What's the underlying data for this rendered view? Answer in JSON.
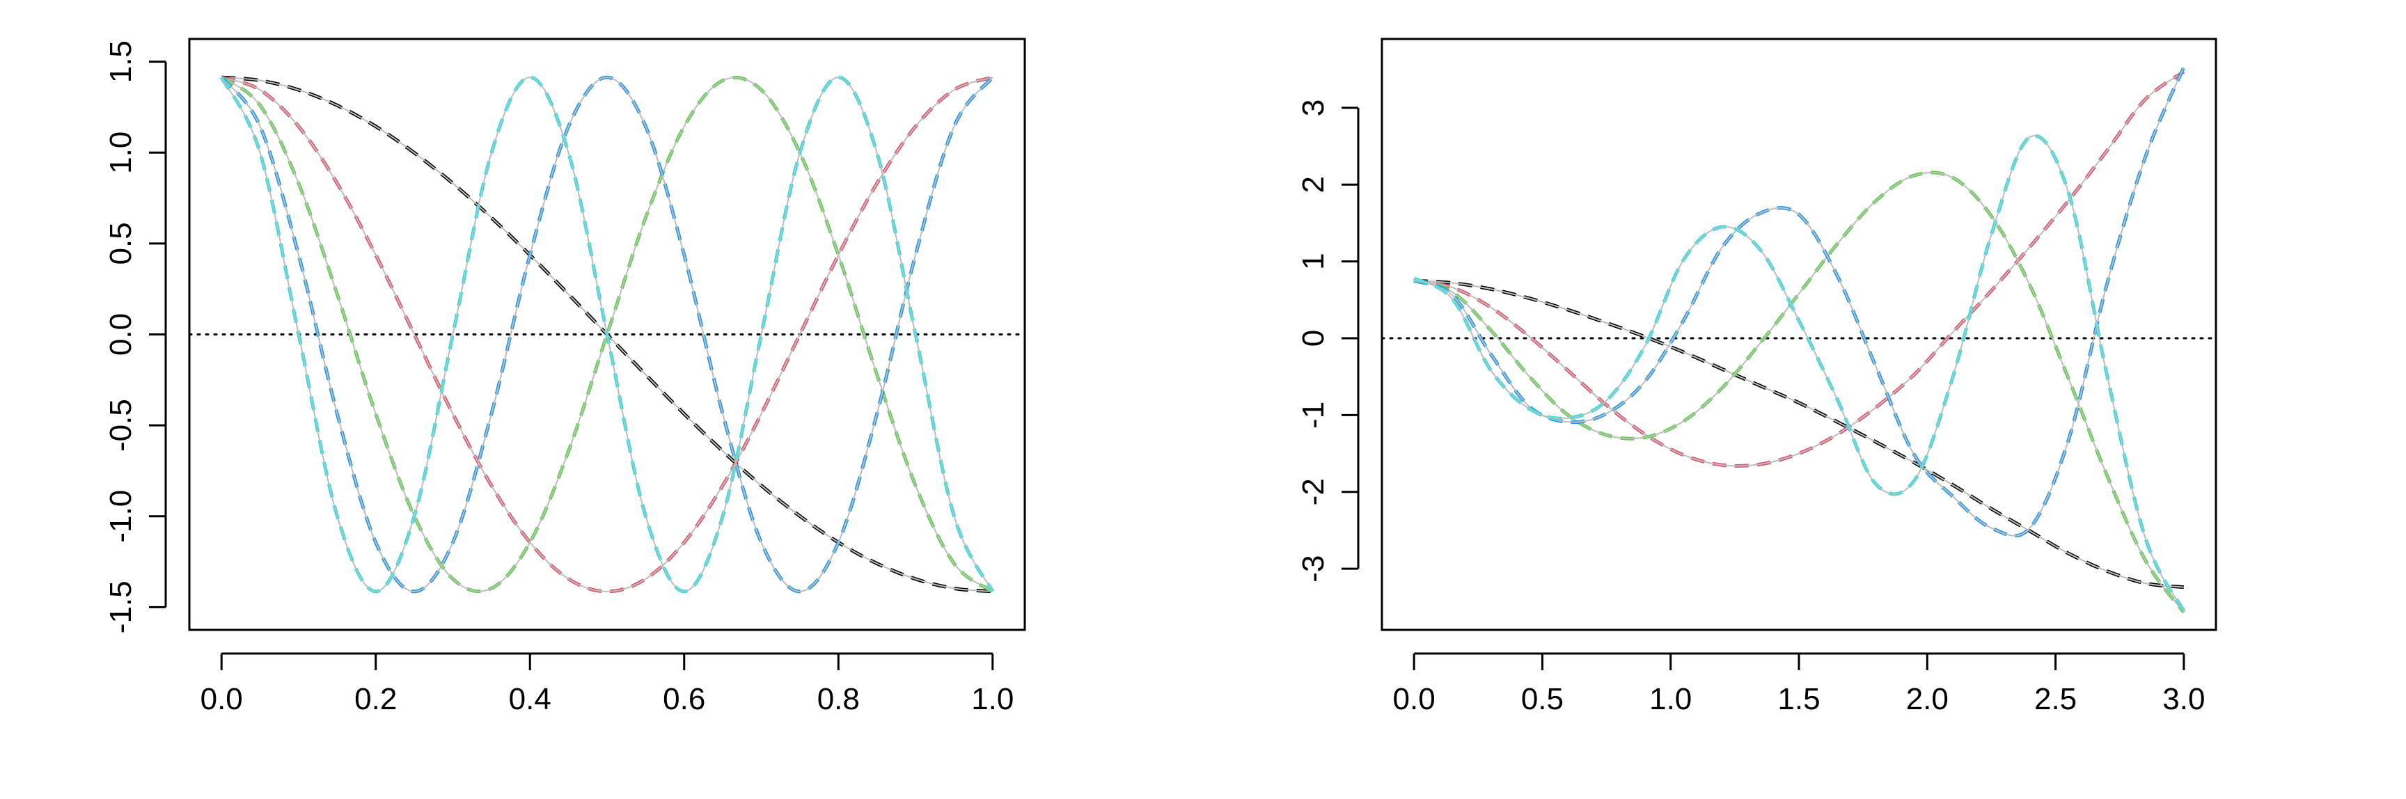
{
  "chart_data": [
    {
      "type": "line",
      "title": "",
      "xlabel": "",
      "ylabel": "",
      "xlim": [
        0,
        1
      ],
      "ylim": [
        -1.5,
        1.5
      ],
      "x_ticks": [
        "0.0",
        "0.2",
        "0.4",
        "0.6",
        "0.8",
        "1.0"
      ],
      "y_ticks": [
        "-1.5",
        "-1.0",
        "-0.5",
        "0.0",
        "0.5",
        "1.0",
        "1.5"
      ],
      "reference_line": {
        "y": 0,
        "style": "dotted"
      },
      "x": [
        0,
        0.05,
        0.1,
        0.15,
        0.2,
        0.25,
        0.3,
        0.35,
        0.4,
        0.45,
        0.5,
        0.55,
        0.6,
        0.65,
        0.7,
        0.75,
        0.8,
        0.85,
        0.9,
        0.95,
        1.0
      ],
      "series": [
        {
          "color": "#000000",
          "values": [
            1.414,
            1.397,
            1.345,
            1.26,
            1.144,
            0.999,
            0.831,
            0.642,
            0.437,
            0.221,
            0.0,
            -0.221,
            -0.437,
            -0.642,
            -0.831,
            -0.999,
            -1.144,
            -1.26,
            -1.345,
            -1.397,
            -1.414
          ]
        },
        {
          "color": "#DF536B",
          "values": [
            1.414,
            1.345,
            1.144,
            0.831,
            0.437,
            0.0,
            -0.437,
            -0.831,
            -1.144,
            -1.345,
            -1.414,
            -1.345,
            -1.144,
            -0.831,
            -0.437,
            0.0,
            0.437,
            0.831,
            1.144,
            1.345,
            1.414
          ]
        },
        {
          "color": "#61D04F",
          "values": [
            1.414,
            1.26,
            0.831,
            0.221,
            -0.437,
            -0.999,
            -1.345,
            -1.397,
            -1.144,
            -0.642,
            0.0,
            0.642,
            1.144,
            1.397,
            1.345,
            0.999,
            0.437,
            -0.221,
            -0.831,
            -1.26,
            -1.414
          ]
        },
        {
          "color": "#2297E6",
          "values": [
            1.414,
            1.144,
            0.437,
            -0.437,
            -1.144,
            -1.414,
            -1.144,
            -0.437,
            0.437,
            1.144,
            1.414,
            1.144,
            0.437,
            -0.437,
            -1.144,
            -1.414,
            -1.144,
            -0.437,
            0.437,
            1.144,
            1.414
          ]
        },
        {
          "color": "#28E2E5",
          "values": [
            1.414,
            0.999,
            0.0,
            -0.999,
            -1.414,
            -0.999,
            0.0,
            0.999,
            1.414,
            0.999,
            0.0,
            -0.999,
            -1.414,
            -0.999,
            0.0,
            0.999,
            1.414,
            0.999,
            0.0,
            -0.999,
            -1.414
          ]
        }
      ]
    },
    {
      "type": "line",
      "title": "",
      "xlabel": "",
      "ylabel": "",
      "xlim": [
        0,
        3
      ],
      "ylim": [
        -3.5,
        3.6
      ],
      "x_ticks": [
        "0.0",
        "0.5",
        "1.0",
        "1.5",
        "2.0",
        "2.5",
        "3.0"
      ],
      "y_ticks": [
        "-3",
        "-2",
        "-1",
        "0",
        "1",
        "2",
        "3"
      ],
      "reference_line": {
        "y": 0,
        "style": "dotted"
      },
      "x": [
        0,
        0.15,
        0.3,
        0.45,
        0.6,
        0.75,
        0.9,
        1.05,
        1.2,
        1.35,
        1.5,
        1.65,
        1.8,
        1.95,
        2.1,
        2.25,
        2.4,
        2.55,
        2.7,
        2.85,
        3.0
      ],
      "series": [
        {
          "color": "#000000",
          "values": [
            0.75,
            0.72,
            0.64,
            0.52,
            0.37,
            0.2,
            0.02,
            -0.18,
            -0.4,
            -0.62,
            -0.84,
            -1.09,
            -1.35,
            -1.62,
            -1.91,
            -2.22,
            -2.51,
            -2.8,
            -3.03,
            -3.19,
            -3.24
          ]
        },
        {
          "color": "#DF536B",
          "values": [
            0.75,
            0.66,
            0.4,
            0.02,
            -0.42,
            -0.87,
            -1.25,
            -1.52,
            -1.65,
            -1.64,
            -1.5,
            -1.25,
            -0.9,
            -0.47,
            0.08,
            0.62,
            1.19,
            1.79,
            2.44,
            3.11,
            3.47
          ]
        },
        {
          "color": "#61D04F",
          "values": [
            0.75,
            0.6,
            0.1,
            -0.5,
            -1.0,
            -1.26,
            -1.29,
            -1.08,
            -0.65,
            -0.06,
            0.58,
            1.23,
            1.79,
            2.12,
            2.09,
            1.59,
            0.69,
            -0.52,
            -1.78,
            -2.89,
            -3.57
          ]
        },
        {
          "color": "#2297E6",
          "values": [
            0.75,
            0.56,
            -0.21,
            -0.89,
            -1.09,
            -0.98,
            -0.56,
            0.23,
            1.18,
            1.63,
            1.61,
            0.81,
            -0.37,
            -1.52,
            -2.06,
            -2.47,
            -2.47,
            -1.33,
            0.7,
            2.36,
            3.53
          ]
        },
        {
          "color": "#28E2E5",
          "values": [
            0.78,
            0.51,
            -0.42,
            -0.92,
            -1.04,
            -0.81,
            -0.1,
            1.02,
            1.45,
            1.15,
            0.23,
            -0.8,
            -1.9,
            -1.85,
            -0.5,
            1.35,
            2.62,
            1.9,
            -0.47,
            -2.6,
            -3.55
          ]
        }
      ]
    }
  ]
}
